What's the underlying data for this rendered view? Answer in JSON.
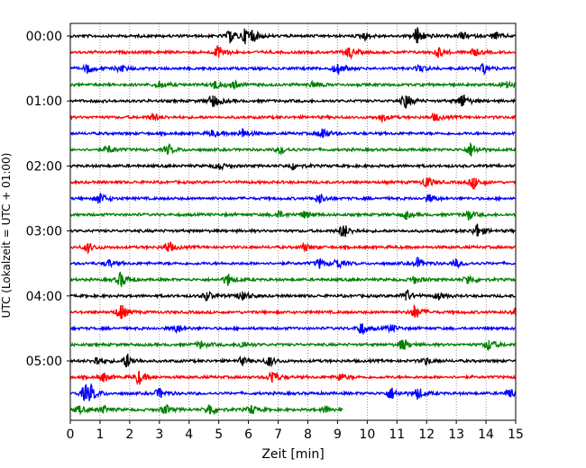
{
  "chart_data": {
    "type": "line",
    "title": "",
    "xlabel": "Zeit  [min]",
    "ylabel": "UTC (Lokalzeit = UTC + 01:00)",
    "xlim": [
      0,
      15
    ],
    "x_ticks": [
      0,
      1,
      2,
      3,
      4,
      5,
      6,
      7,
      8,
      9,
      10,
      11,
      12,
      13,
      14,
      15
    ],
    "y_ticks": [
      "00:00",
      "01:00",
      "02:00",
      "03:00",
      "04:00",
      "05:00"
    ],
    "grid": "vertical dotted at each minute",
    "trace_interval_min": 15,
    "trace_colors": [
      "#000000",
      "#ff0000",
      "#0000ff",
      "#008000"
    ],
    "traces": [
      {
        "start": "00:00",
        "end_min": 15,
        "events": [
          [
            5.4,
            5
          ],
          [
            5.9,
            5
          ],
          [
            6.1,
            5
          ],
          [
            9.9,
            3
          ],
          [
            11.7,
            8
          ],
          [
            13.2,
            3
          ],
          [
            14.3,
            3
          ]
        ]
      },
      {
        "start": "00:15",
        "end_min": 15,
        "events": [
          [
            5.0,
            6
          ],
          [
            9.4,
            5
          ],
          [
            12.4,
            4
          ],
          [
            13.6,
            3
          ]
        ]
      },
      {
        "start": "00:30",
        "end_min": 15,
        "events": [
          [
            0.6,
            4
          ],
          [
            1.7,
            3
          ],
          [
            9.0,
            5
          ],
          [
            11.8,
            3
          ],
          [
            13.9,
            4
          ]
        ]
      },
      {
        "start": "00:45",
        "end_min": 15,
        "events": [
          [
            3.0,
            3
          ],
          [
            4.9,
            4
          ],
          [
            5.5,
            3
          ],
          [
            8.2,
            3
          ],
          [
            14.7,
            4
          ]
        ]
      },
      {
        "start": "01:00",
        "end_min": 15,
        "events": [
          [
            4.8,
            6
          ],
          [
            11.3,
            6
          ],
          [
            13.2,
            6
          ]
        ]
      },
      {
        "start": "01:15",
        "end_min": 15,
        "events": [
          [
            2.8,
            3
          ],
          [
            10.5,
            3
          ],
          [
            12.3,
            3
          ]
        ]
      },
      {
        "start": "01:30",
        "end_min": 15,
        "events": [
          [
            4.8,
            3
          ],
          [
            5.8,
            4
          ],
          [
            8.5,
            5
          ]
        ]
      },
      {
        "start": "01:45",
        "end_min": 15,
        "events": [
          [
            1.3,
            3
          ],
          [
            3.3,
            4
          ],
          [
            7.1,
            3
          ],
          [
            13.5,
            6
          ]
        ]
      },
      {
        "start": "02:00",
        "end_min": 15,
        "events": [
          [
            5.0,
            3
          ],
          [
            7.5,
            3
          ]
        ]
      },
      {
        "start": "02:15",
        "end_min": 15,
        "events": [
          [
            12.0,
            5
          ],
          [
            13.6,
            5
          ]
        ]
      },
      {
        "start": "02:30",
        "end_min": 15,
        "events": [
          [
            1.0,
            5
          ],
          [
            8.4,
            4
          ],
          [
            12.1,
            3
          ]
        ]
      },
      {
        "start": "02:45",
        "end_min": 15,
        "events": [
          [
            7.0,
            3
          ],
          [
            7.9,
            3
          ],
          [
            11.3,
            3
          ],
          [
            13.4,
            4
          ]
        ]
      },
      {
        "start": "03:00",
        "end_min": 15,
        "events": [
          [
            9.2,
            6
          ],
          [
            13.7,
            6
          ]
        ]
      },
      {
        "start": "03:15",
        "end_min": 15,
        "events": [
          [
            0.6,
            4
          ],
          [
            3.3,
            5
          ],
          [
            7.9,
            3
          ]
        ]
      },
      {
        "start": "03:30",
        "end_min": 15,
        "events": [
          [
            1.3,
            3
          ],
          [
            8.4,
            4
          ],
          [
            9.0,
            4
          ],
          [
            11.7,
            4
          ],
          [
            13.0,
            3
          ]
        ]
      },
      {
        "start": "03:45",
        "end_min": 15,
        "events": [
          [
            1.7,
            6
          ],
          [
            5.3,
            5
          ],
          [
            11.6,
            3
          ],
          [
            13.4,
            4
          ]
        ]
      },
      {
        "start": "04:00",
        "end_min": 15,
        "events": [
          [
            4.6,
            4
          ],
          [
            5.8,
            5
          ],
          [
            11.3,
            5
          ],
          [
            12.4,
            3
          ]
        ]
      },
      {
        "start": "04:15",
        "end_min": 15,
        "events": [
          [
            1.7,
            7
          ],
          [
            11.6,
            6
          ],
          [
            15.0,
            4
          ]
        ]
      },
      {
        "start": "04:30",
        "end_min": 15,
        "events": [
          [
            3.6,
            3
          ],
          [
            9.8,
            5
          ],
          [
            10.8,
            3
          ]
        ]
      },
      {
        "start": "04:45",
        "end_min": 15,
        "events": [
          [
            4.4,
            3
          ],
          [
            5.8,
            3
          ],
          [
            11.2,
            5
          ],
          [
            14.1,
            5
          ]
        ]
      },
      {
        "start": "05:00",
        "end_min": 15,
        "events": [
          [
            0.9,
            4
          ],
          [
            1.9,
            6
          ],
          [
            5.8,
            3
          ],
          [
            6.7,
            4
          ],
          [
            12.0,
            3
          ]
        ]
      },
      {
        "start": "05:15",
        "end_min": 15,
        "events": [
          [
            1.1,
            4
          ],
          [
            2.3,
            6
          ],
          [
            6.8,
            6
          ],
          [
            9.1,
            3
          ]
        ]
      },
      {
        "start": "05:30",
        "end_min": 15,
        "events": [
          [
            0.5,
            6
          ],
          [
            0.7,
            5
          ],
          [
            3.0,
            4
          ],
          [
            10.8,
            5
          ],
          [
            11.7,
            5
          ],
          [
            14.8,
            4
          ]
        ]
      },
      {
        "start": "05:45",
        "end_min": 9.2,
        "events": [
          [
            0.3,
            3
          ],
          [
            1.1,
            3
          ],
          [
            3.2,
            4
          ],
          [
            4.7,
            5
          ],
          [
            6.1,
            4
          ],
          [
            8.6,
            3
          ]
        ]
      }
    ]
  }
}
